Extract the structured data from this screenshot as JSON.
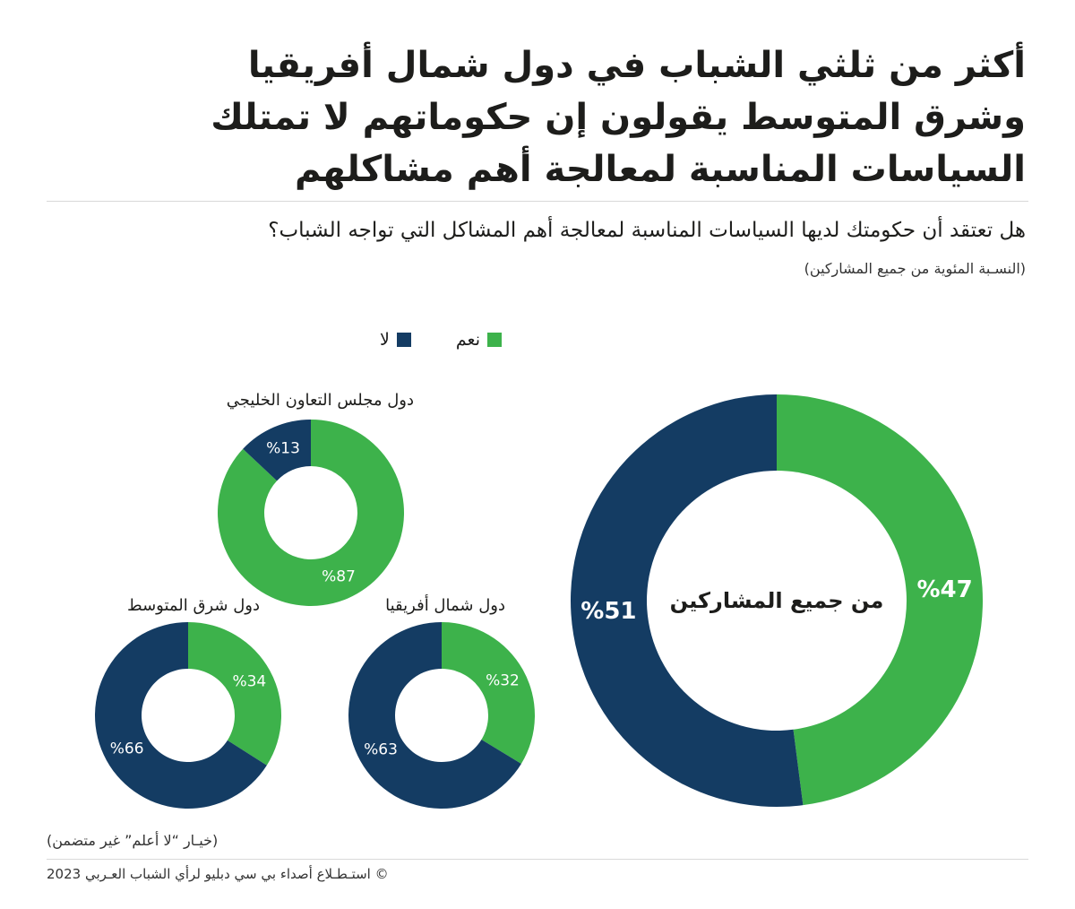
{
  "title": "أكثر من ثلثي الشباب في دول شمال أفريقيا وشرق المتوسط يقولون إن حكوماتهم لا تمتلك السياسات المناسبة لمعالجة أهم مشاكلهم",
  "question": "هل تعتقد أن حكومتك لديها السياسات المناسبة لمعالجة أهم المشاكل التي تواجه الشباب؟",
  "subtitle": "(النسـبة المئوية من جميع المشاركين)",
  "legend": [
    {
      "label": "نعم",
      "color": "#3db24b"
    },
    {
      "label": "لا",
      "color": "#143c63"
    }
  ],
  "note": "(خيـار “لا أعلم” غير متضمن)",
  "source": "© استـطـلاع أصداء بي سي دبليو لرأي الشباب العـربي 2023",
  "chart_data": [
    {
      "type": "donut",
      "title": "",
      "center_label": "من جميع المشاركين",
      "series": [
        {
          "name": "نعم",
          "value": 47,
          "label": "%47"
        },
        {
          "name": "لا",
          "value": 51,
          "label": "%51"
        }
      ]
    },
    {
      "type": "donut",
      "title": "دول مجلس التعاون الخليجي",
      "series": [
        {
          "name": "نعم",
          "value": 87,
          "label": "%87"
        },
        {
          "name": "لا",
          "value": 13,
          "label": "%13"
        }
      ]
    },
    {
      "type": "donut",
      "title": "دول شمال أفريقيا",
      "series": [
        {
          "name": "نعم",
          "value": 32,
          "label": "%32"
        },
        {
          "name": "لا",
          "value": 63,
          "label": "%63"
        }
      ]
    },
    {
      "type": "donut",
      "title": "دول شرق المتوسط",
      "series": [
        {
          "name": "نعم",
          "value": 34,
          "label": "%34"
        },
        {
          "name": "لا",
          "value": 66,
          "label": "%66"
        }
      ]
    }
  ]
}
